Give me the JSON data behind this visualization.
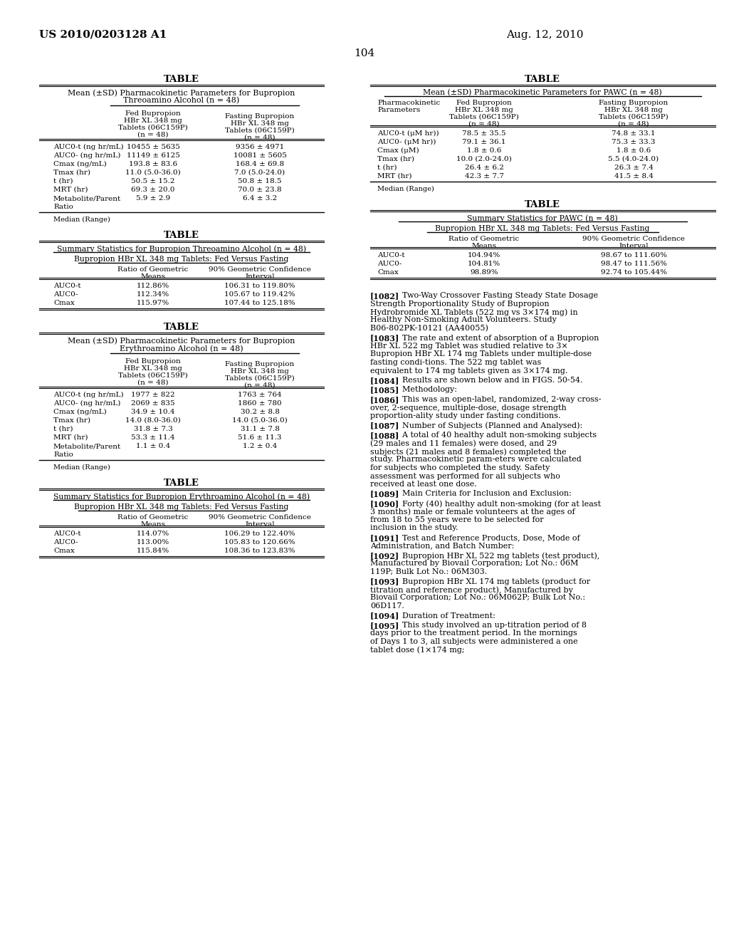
{
  "header_left": "US 2010/0203128 A1",
  "header_right": "Aug. 12, 2010",
  "page_number": "104",
  "background_color": "#ffffff",
  "table1_title": "TABLE",
  "table1_sub1": "Mean (±SD) Pharmacokinetic Parameters for Bupropion",
  "table1_sub2": "Threoamino Alcohol (n = 48)",
  "table1_col2": "Fed Bupropion",
  "table1_col2b": "HBr XL 348 mg",
  "table1_col2c": "Tablets (06C159P)",
  "table1_col2d": "(n = 48)",
  "table1_col3": "Fasting Bupropion",
  "table1_col3b": "HBr XL 348 mg",
  "table1_col3c": "Tablets (06C159P)",
  "table1_col3d": "(n = 48)",
  "table1_rows": [
    [
      "AUC0-t (ng hr/mL)",
      "10455 ± 5635",
      "9356 ± 4971"
    ],
    [
      "AUC0- (ng hr/mL)",
      "11149 ± 6125",
      "10081 ± 5605"
    ],
    [
      "Cmax (ng/mL)",
      "193.8 ± 83.6",
      "168.4 ± 69.8"
    ],
    [
      "Tmax (hr)",
      "11.0 (5.0-36.0)",
      "7.0 (5.0-24.0)"
    ],
    [
      "t (hr)",
      "50.5 ± 15.2",
      "50.8 ± 18.5"
    ],
    [
      "MRT (hr)",
      "69.3 ± 20.0",
      "70.0 ± 23.8"
    ],
    [
      "Metabolite/Parent",
      "5.9 ± 2.9",
      "6.4 ± 3.2"
    ],
    [
      "Ratio",
      "",
      ""
    ]
  ],
  "table1_footer": "Median (Range)",
  "table2_title": "TABLE",
  "table2_sub1": "Summary Statistics for Bupropion Threoamino Alcohol (n = 48)",
  "table2_sub2": "Bupropion HBr XL 348 mg Tablets: Fed Versus Fasting",
  "table2_col2a": "Ratio of Geometric",
  "table2_col2b": "Means",
  "table2_col3a": "90% Geometric Confidence",
  "table2_col3b": "Interval",
  "table2_rows": [
    [
      "AUC0-t",
      "112.86%",
      "106.31 to 119.80%"
    ],
    [
      "AUC0-",
      "112.34%",
      "105.67 to 119.42%"
    ],
    [
      "Cmax",
      "115.97%",
      "107.44 to 125.18%"
    ]
  ],
  "table3_title": "TABLE",
  "table3_sub1": "Mean (±SD) Pharmacokinetic Parameters for Bupropion",
  "table3_sub2": "Erythroamino Alcohol (n = 48)",
  "table3_rows": [
    [
      "AUC0-t (ng hr/mL)",
      "1977 ± 822",
      "1763 ± 764"
    ],
    [
      "AUC0- (ng hr/mL)",
      "2069 ± 835",
      "1860 ± 780"
    ],
    [
      "Cmax (ng/mL)",
      "34.9 ± 10.4",
      "30.2 ± 8.8"
    ],
    [
      "Tmax (hr)",
      "14.0 (8.0-36.0)",
      "14.0 (5.0-36.0)"
    ],
    [
      "t (hr)",
      "31.8 ± 7.3",
      "31.1 ± 7.8"
    ],
    [
      "MRT (hr)",
      "53.3 ± 11.4",
      "51.6 ± 11.3"
    ],
    [
      "Metabolite/Parent",
      "1.1 ± 0.4",
      "1.2 ± 0.4"
    ],
    [
      "Ratio",
      "",
      ""
    ]
  ],
  "table3_footer": "Median (Range)",
  "table4_title": "TABLE",
  "table4_sub1": "Summary Statistics for Bupropion Erythroamino Alcohol (n = 48)",
  "table4_sub2": "Bupropion HBr XL 348 mg Tablets: Fed Versus Fasting",
  "table4_rows": [
    [
      "AUC0-t",
      "114.07%",
      "106.29 to 122.40%"
    ],
    [
      "AUC0-",
      "113.00%",
      "105.83 to 120.66%"
    ],
    [
      "Cmax",
      "115.84%",
      "108.36 to 123.83%"
    ]
  ],
  "table5_title": "TABLE",
  "table5_sub1": "Mean (±SD) Pharmacokinetic Parameters for PAWC (n = 48)",
  "table5_col1a": "Pharmacokinetic",
  "table5_col1b": "Parameters",
  "table5_rows": [
    [
      "AUC0-t (μM hr))",
      "78.5 ± 35.5",
      "74.8 ± 33.1"
    ],
    [
      "AUC0- (μM hr))",
      "79.1 ± 36.1",
      "75.3 ± 33.3"
    ],
    [
      "Cmax (μM)",
      "1.8 ± 0.6",
      "1.8 ± 0.6"
    ],
    [
      "Tmax (hr)",
      "10.0 (2.0-24.0)",
      "5.5 (4.0-24.0)"
    ],
    [
      "t (hr)",
      "26.4 ± 6.2",
      "26.3 ± 7.4"
    ],
    [
      "MRT (hr)",
      "42.3 ± 7.7",
      "41.5 ± 8.4"
    ]
  ],
  "table5_footer": "Median (Range)",
  "table6_title": "TABLE",
  "table6_sub1": "Summary Statistics for PAWC (n = 48)",
  "table6_sub2": "Bupropion HBr XL 348 mg Tablets: Fed Versus Fasting",
  "table6_rows": [
    [
      "AUC0-t",
      "104.94%",
      "98.67 to 111.60%"
    ],
    [
      "AUC0-",
      "104.81%",
      "98.47 to 111.56%"
    ],
    [
      "Cmax",
      "98.89%",
      "92.74 to 105.44%"
    ]
  ],
  "paragraphs": [
    {
      "num": "[1082]",
      "bold_intro": "",
      "text": "Two-Way Crossover Fasting Steady State Dosage Strength Proportionality Study of Bupropion Hydrobromide XL Tablets (522 mg vs 3×174 mg) in Healthy Non-Smoking Adult Volunteers. Study B06-802PK-10121 (AA40055)"
    },
    {
      "num": "[1083]",
      "bold_intro": "",
      "text": "The rate and extent of absorption of a Bupropion HBr XL 522 mg Tablet was studied relative to 3× Bupropion HBr XL 174 mg Tablets under multiple-dose fasting condi-tions. The 522 mg tablet was equivalent to 174 mg tablets given as 3×174 mg."
    },
    {
      "num": "[1084]",
      "bold_intro": "",
      "text": "Results are shown below and in FIGS. ​50-54."
    },
    {
      "num": "[1085]",
      "bold_intro": "",
      "text": "Methodology:"
    },
    {
      "num": "[1086]",
      "bold_intro": "",
      "text": "This was an open-label, randomized, 2-way cross-over, 2-sequence, multiple-dose, dosage strength proportion-ality study under fasting conditions."
    },
    {
      "num": "[1087]",
      "bold_intro": "",
      "text": "Number of Subjects (Planned and Analysed):"
    },
    {
      "num": "[1088]",
      "bold_intro": "",
      "text": "A total of 40 healthy adult non-smoking subjects (29 males and 11 females) were dosed, and 29 subjects (21 males and 8 females) completed the study. Pharmacokinetic param-eters were calculated for subjects who completed the study. Safety assessment was performed for all subjects who received at least one dose."
    },
    {
      "num": "[1089]",
      "bold_intro": "",
      "text": "Main Criteria for Inclusion and Exclusion:"
    },
    {
      "num": "[1090]",
      "bold_intro": "",
      "text": "Forty (40) healthy adult non-smoking (for at least 3 months) male or female volunteers at the ages of from 18 to 55 years were to be selected for inclusion in the study."
    },
    {
      "num": "[1091]",
      "bold_intro": "",
      "text": "Test and Reference Products, Dose, Mode of Administration, and Batch Number:"
    },
    {
      "num": "[1092]",
      "bold_intro": "",
      "text": "Bupropion HBr XL 522 mg tablets (test product), Manufactured by Biovail Corporation; Lot No.: 06M 119P; Bulk Lot No.: 06M303."
    },
    {
      "num": "[1093]",
      "bold_intro": "",
      "text": "Bupropion HBr XL 174 mg tablets (product for titration and reference product), Manufactured by Biovail Corporation; Lot No.: 06M062P; Bulk Lot No.: 06D117."
    },
    {
      "num": "[1094]",
      "bold_intro": "",
      "text": "Duration of Treatment:"
    },
    {
      "num": "[1095]",
      "bold_intro": "",
      "text": "This study involved an up-titration period of 8 days prior to the treatment period. In the mornings of Days 1 to 3, all subjects were administered a one tablet dose (1×174 mg;"
    }
  ]
}
